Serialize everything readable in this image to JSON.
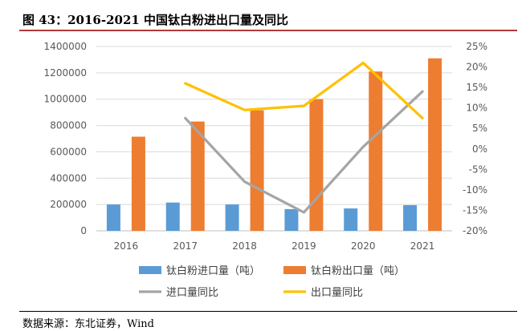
{
  "header": {
    "title": "图 43：2016-2021 中国钛白粉进出口量及同比"
  },
  "footer": {
    "source": "数据来源：东北证券，Wind"
  },
  "chart_data": {
    "type": "bar",
    "categories": [
      "2016",
      "2017",
      "2018",
      "2019",
      "2020",
      "2021"
    ],
    "bar_series": [
      {
        "name": "钛白粉进口量（吨）",
        "color": "#5b9bd5",
        "values": [
          200000,
          215000,
          200000,
          165000,
          170000,
          195000
        ]
      },
      {
        "name": "钛白粉出口量（吨）",
        "color": "#ed7d31",
        "values": [
          715000,
          830000,
          915000,
          1000000,
          1210000,
          1310000
        ]
      }
    ],
    "line_series": [
      {
        "name": "进口量同比",
        "color": "#a5a5a5",
        "axis": "right",
        "values": [
          null,
          0.075,
          -0.08,
          -0.155,
          0.005,
          0.14
        ]
      },
      {
        "name": "出口量同比",
        "color": "#ffc000",
        "axis": "right",
        "values": [
          null,
          0.16,
          0.095,
          0.105,
          0.21,
          0.075
        ]
      }
    ],
    "left_axis": {
      "min": 0,
      "max": 1400000,
      "step": 200000,
      "tick_labels": [
        "0",
        "200000",
        "400000",
        "600000",
        "800000",
        "1000000",
        "1200000",
        "1400000"
      ]
    },
    "right_axis": {
      "min": -0.2,
      "max": 0.25,
      "step": 0.05,
      "tick_labels": [
        "-20%",
        "-15%",
        "-10%",
        "-5%",
        "0%",
        "5%",
        "10%",
        "15%",
        "20%",
        "25%"
      ]
    },
    "grid": true,
    "legend_position": "bottom"
  }
}
